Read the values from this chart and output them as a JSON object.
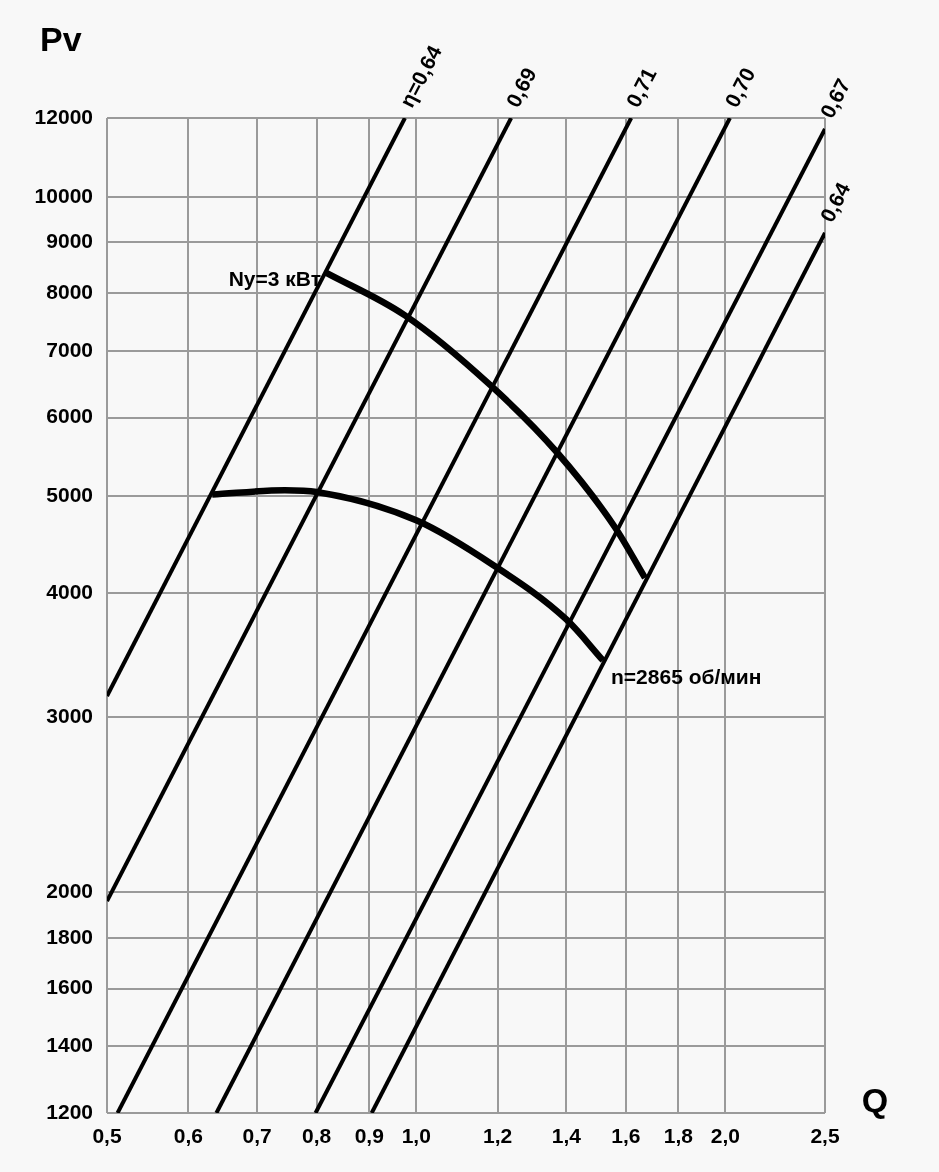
{
  "chart_data": {
    "type": "line",
    "xlabel": "Q",
    "ylabel": "Pv",
    "log": "xy",
    "grid": true,
    "legend": false,
    "marker": "none",
    "line_style": "solid",
    "xlim": [
      0.5,
      2.5
    ],
    "ylim": [
      1200,
      12000
    ],
    "xticks": [
      {
        "value": 0.5,
        "label": "0,5"
      },
      {
        "value": 0.6,
        "label": "0,6"
      },
      {
        "value": 0.7,
        "label": "0,7"
      },
      {
        "value": 0.8,
        "label": "0,8"
      },
      {
        "value": 0.9,
        "label": "0,9"
      },
      {
        "value": 1.0,
        "label": "1,0"
      },
      {
        "value": 1.2,
        "label": "1,2"
      },
      {
        "value": 1.4,
        "label": "1,4"
      },
      {
        "value": 1.6,
        "label": "1,6"
      },
      {
        "value": 1.8,
        "label": "1,8"
      },
      {
        "value": 2.0,
        "label": "2,0"
      },
      {
        "value": 2.5,
        "label": "2,5"
      }
    ],
    "yticks": [
      1200,
      1400,
      1600,
      1800,
      2000,
      3000,
      4000,
      5000,
      6000,
      7000,
      8000,
      9000,
      10000,
      12000
    ],
    "series": [
      {
        "name": "η=0,64",
        "color": "#000000",
        "x": [
          0.5,
          0.975
        ],
        "values": [
          3150,
          12000
        ]
      },
      {
        "name": "0,69",
        "color": "#000000",
        "x": [
          0.5,
          1.237
        ],
        "values": [
          1960,
          12000
        ]
      },
      {
        "name": "0,71",
        "color": "#000000",
        "x": [
          0.512,
          1.619
        ],
        "values": [
          1200,
          12000
        ]
      },
      {
        "name": "0,70",
        "color": "#000000",
        "x": [
          0.639,
          2.02
        ],
        "values": [
          1200,
          12000
        ]
      },
      {
        "name": "0,67",
        "color": "#000000",
        "x": [
          0.798,
          2.5
        ],
        "values": [
          1200,
          11700
        ]
      },
      {
        "name": "0,64",
        "color": "#000000",
        "x": [
          0.905,
          2.5
        ],
        "values": [
          1200,
          9200
        ]
      },
      {
        "name": "Ny=3 кВт",
        "color": "#000000",
        "x": [
          0.815,
          0.975,
          1.18,
          1.37,
          1.56,
          1.67
        ],
        "values": [
          8400,
          7600,
          6470,
          5540,
          4660,
          4140
        ]
      },
      {
        "name": "n=2865 об/мин",
        "color": "#000000",
        "x": [
          0.633,
          0.745,
          0.8,
          1.0,
          1.19,
          1.4,
          1.52
        ],
        "values": [
          5020,
          5070,
          5050,
          4730,
          4260,
          3760,
          3420
        ]
      }
    ]
  }
}
